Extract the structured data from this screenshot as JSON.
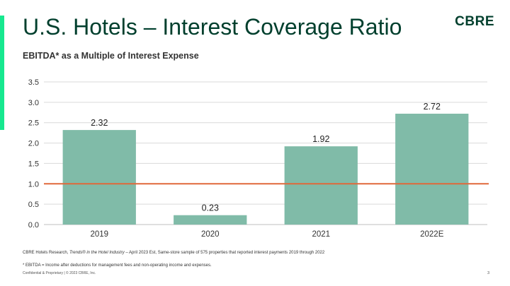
{
  "slide": {
    "title": "U.S. Hotels – Interest Coverage Ratio",
    "logo": "CBRE",
    "source_prefix": "CBRE Hotels Research, ",
    "source_italic": "Trends® in the Hotel Industry",
    "source_suffix": " – April 2023 Est, Same-store sample of 575 properties that reported interest payments 2019 through 2022",
    "footnote": "* EBITDA = Income after deductions for management fees and non-operating income and expenses.",
    "confidential": "Confidential & Proprietary | © 2023 CBRE, Inc.",
    "page_number": "3"
  },
  "colors": {
    "brand_dark_green": "#003f2d",
    "accent_green": "#17e88f",
    "bar": "#80bba8",
    "reference_line": "#e0683a",
    "grid": "#d9d9d9"
  },
  "chart_data": {
    "type": "bar",
    "title": "EBITDA* as a Multiple of Interest Expense",
    "categories": [
      "2019",
      "2020",
      "2021",
      "2022E"
    ],
    "values": [
      2.32,
      0.23,
      1.92,
      2.72
    ],
    "data_labels": [
      "2.32",
      "0.23",
      "1.92",
      "2.72"
    ],
    "y_ticks": [
      "0.0",
      "0.5",
      "1.0",
      "1.5",
      "2.0",
      "2.5",
      "3.0",
      "3.5"
    ],
    "ylim": [
      0,
      3.5
    ],
    "reference_line": 1.0,
    "grid": true,
    "legend": "none"
  }
}
